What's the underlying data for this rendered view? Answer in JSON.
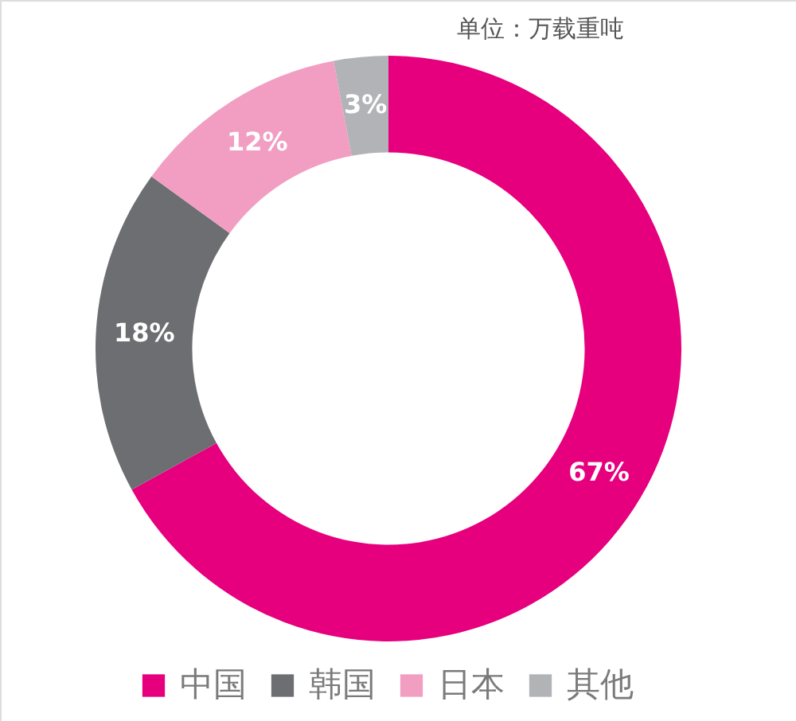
{
  "chart_data": {
    "type": "donut",
    "categories": [
      "中国",
      "韩国",
      "日本",
      "其他"
    ],
    "values": [
      67,
      18,
      12,
      3
    ],
    "colors": [
      "#e6007e",
      "#6d6e71",
      "#f19ec2",
      "#b1b3b6"
    ],
    "value_labels": [
      "67%",
      "18%",
      "12%",
      "3%"
    ],
    "legend": "bottom",
    "annotations": [
      "单位：万载重吨"
    ]
  }
}
